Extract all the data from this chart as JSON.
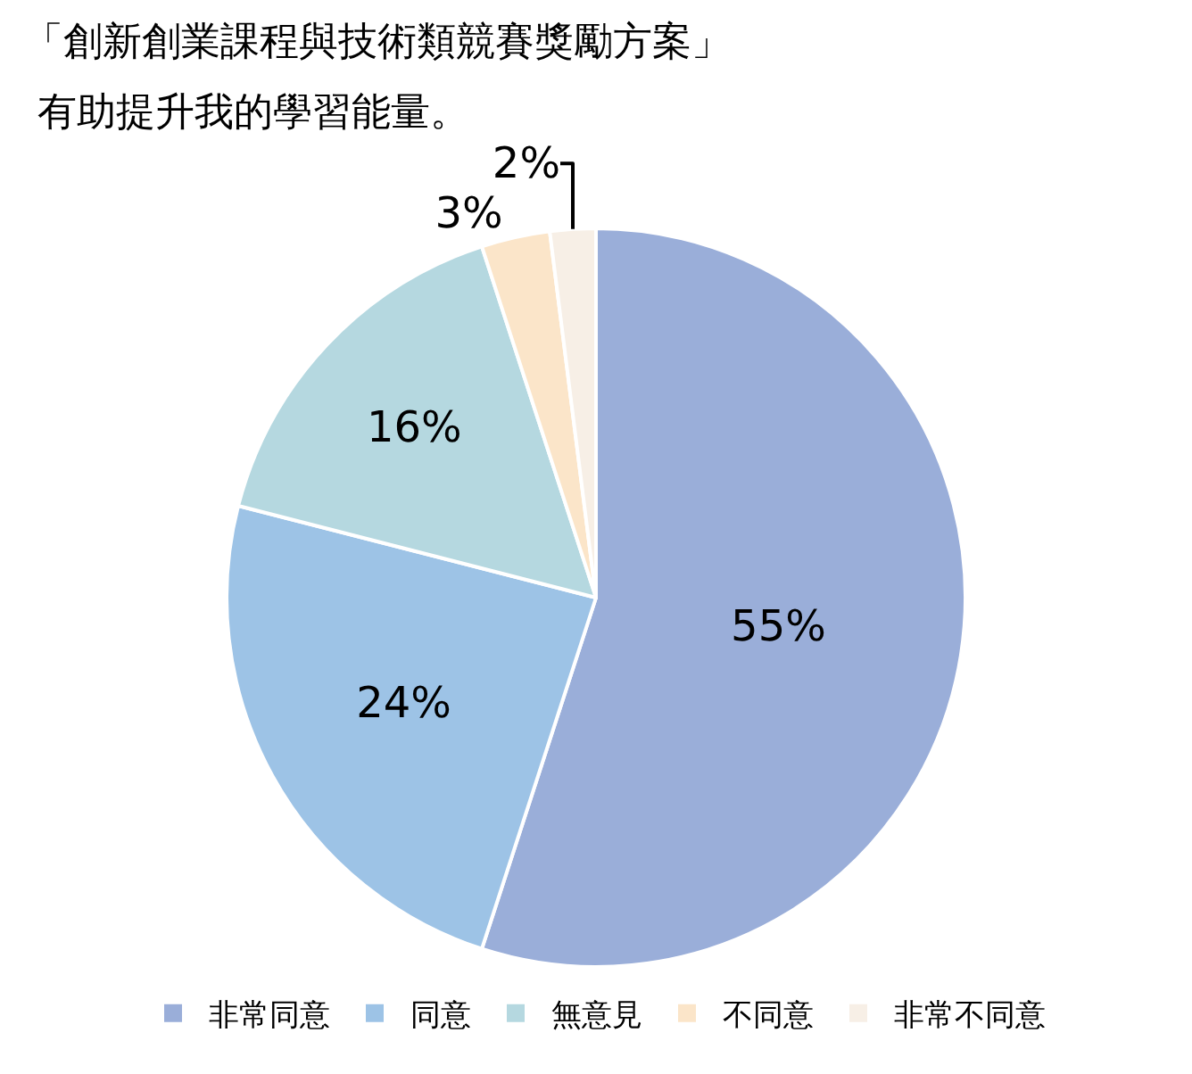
{
  "chart_data": {
    "type": "pie",
    "title": "「創新創業課程與技術類競賽獎勵方案」",
    "subtitle": "有助提升我的學習能量。",
    "categories": [
      "非常同意",
      "同意",
      "無意見",
      "不同意",
      "非常不同意"
    ],
    "values": [
      55,
      24,
      16,
      3,
      2
    ],
    "colors": [
      "#9aaed9",
      "#9dc3e6",
      "#b5d8e0",
      "#fbe5c9",
      "#f7efe6"
    ],
    "value_labels": [
      "55%",
      "24%",
      "16%",
      "3%",
      "2%"
    ],
    "legend": "bottom"
  }
}
